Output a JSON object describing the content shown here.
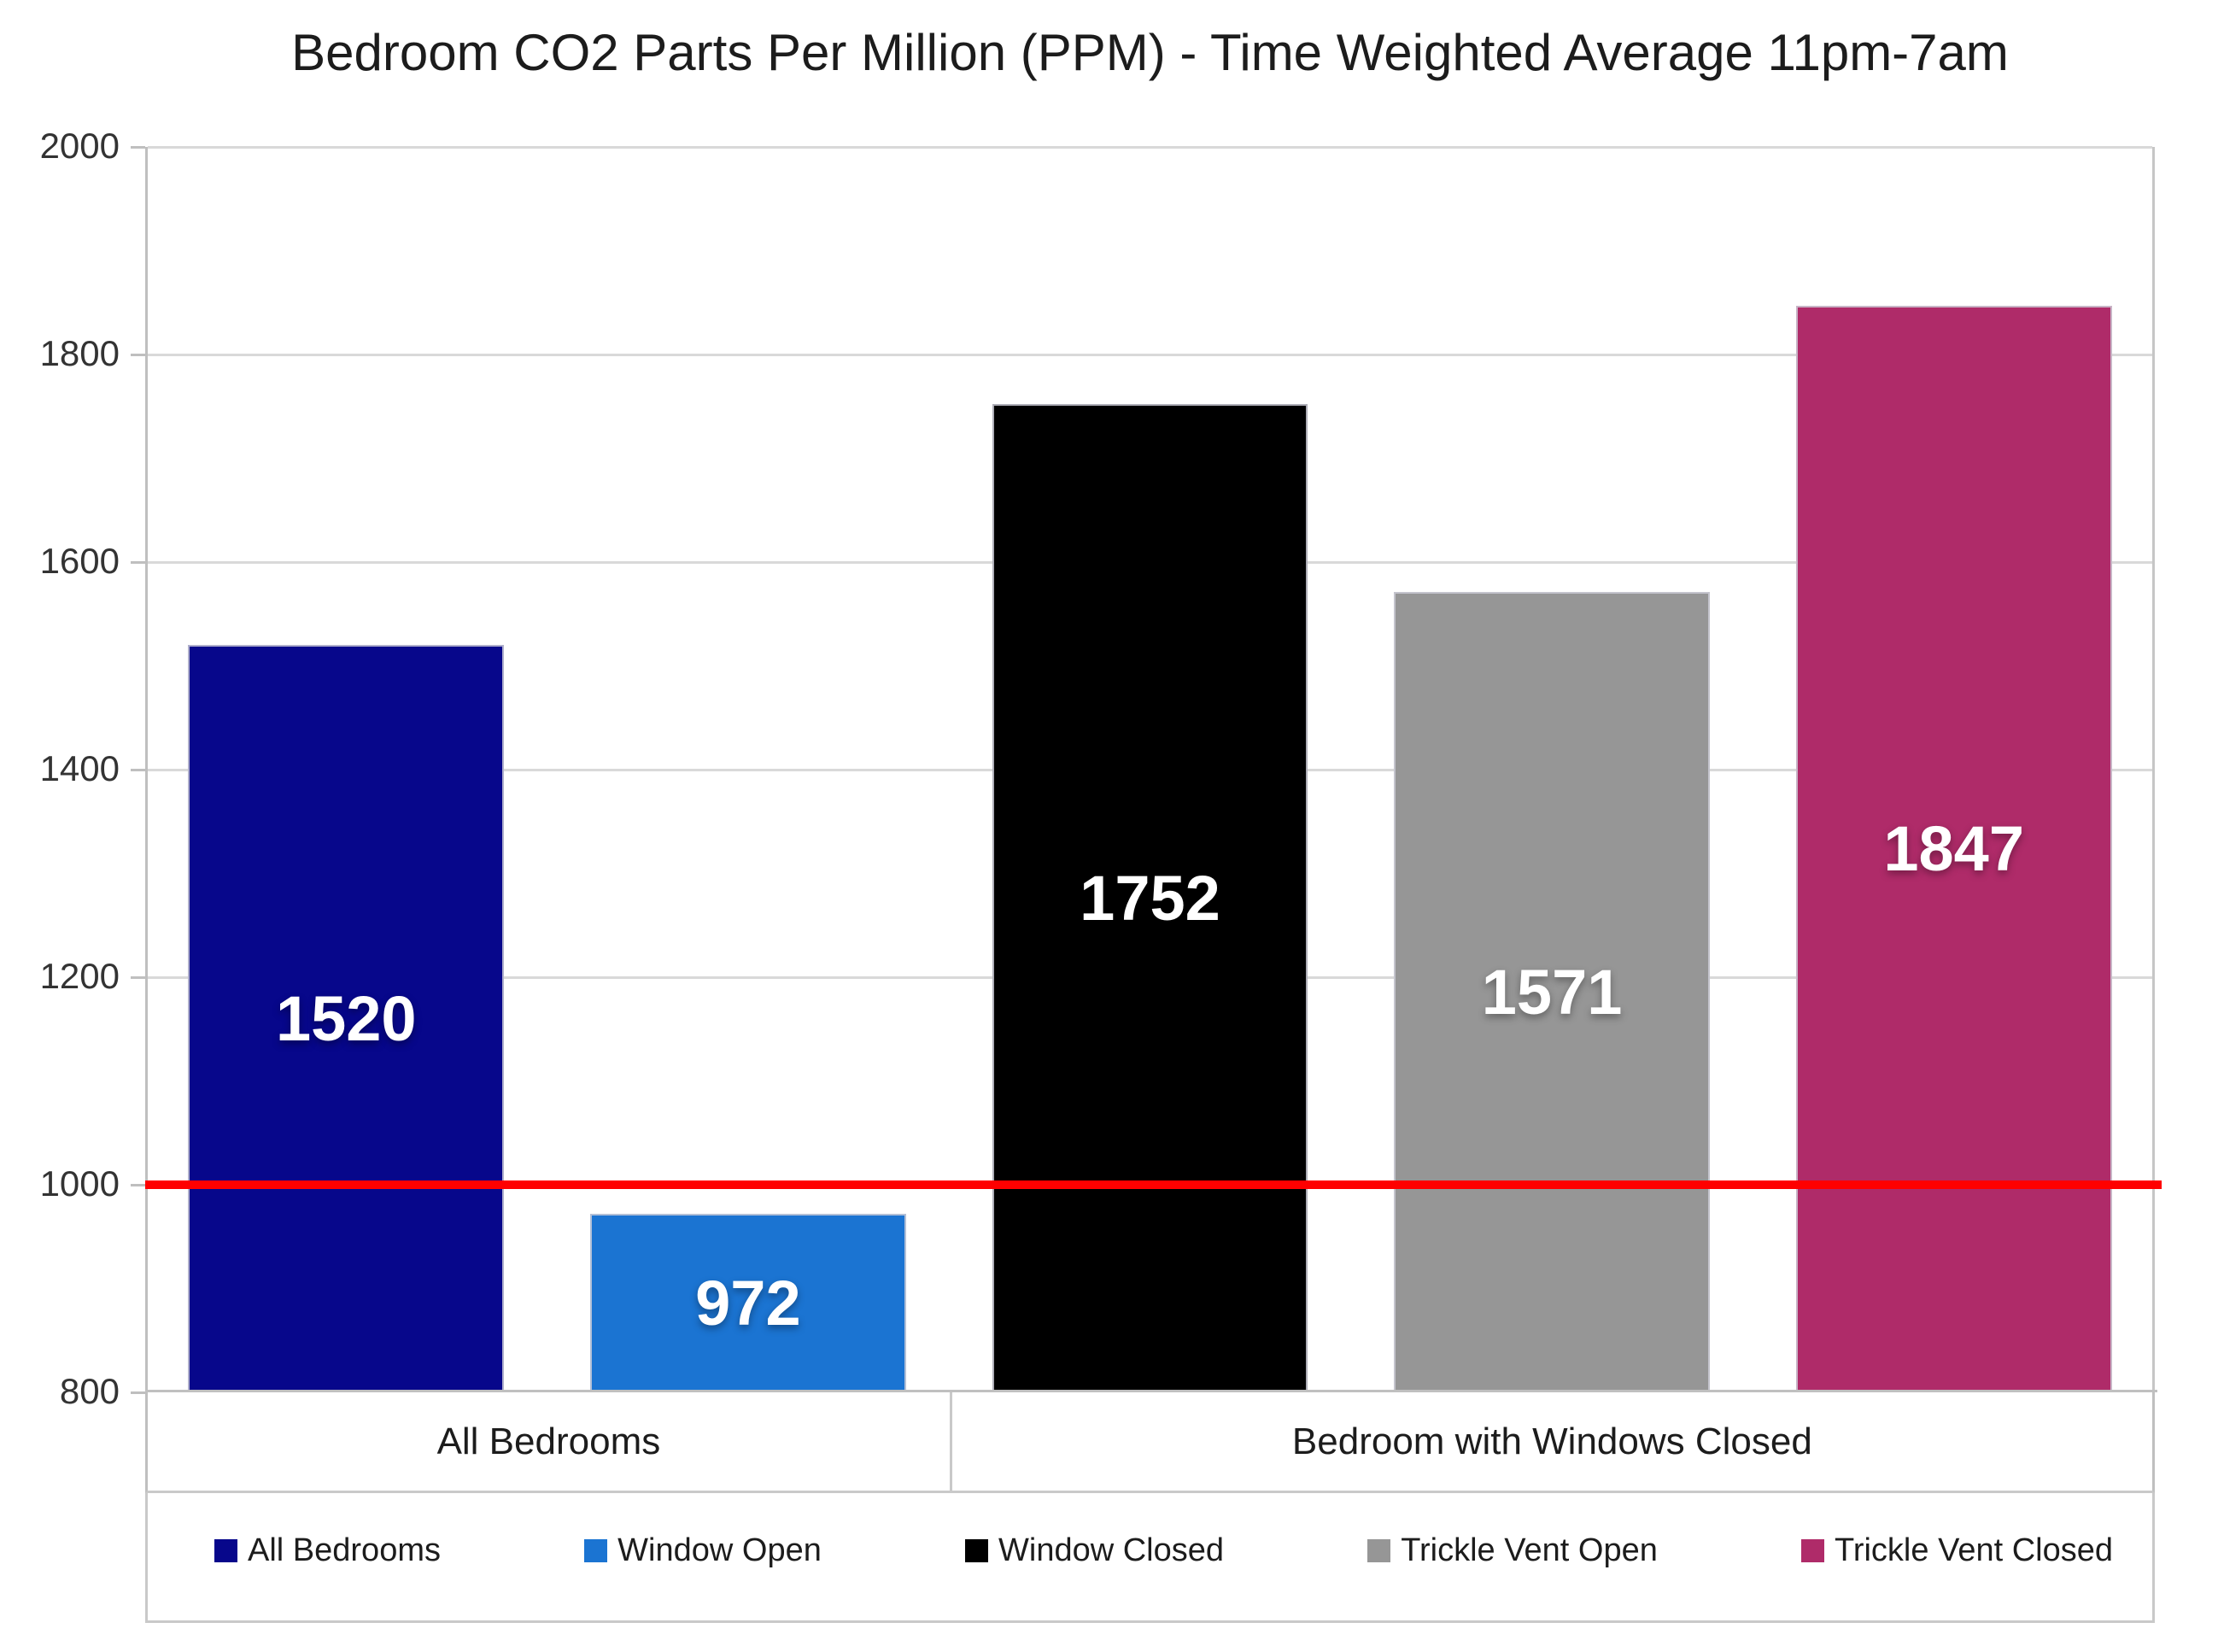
{
  "chart_data": {
    "type": "bar",
    "title": "Bedroom CO2 Parts Per Million (PPM) - Time Weighted Average 11pm-7am",
    "xlabel": "",
    "ylabel": "",
    "ylim": [
      800,
      2000
    ],
    "yticks": [
      2000,
      1800,
      1600,
      1400,
      1200,
      1000,
      800
    ],
    "grid": true,
    "legend_position": "bottom",
    "groups": [
      {
        "label": "All Bedrooms",
        "bars": [
          {
            "name": "All Bedrooms",
            "value": 1520,
            "color": "#07078B"
          },
          {
            "name": "Window Open",
            "value": 972,
            "color": "#1B74D2"
          }
        ]
      },
      {
        "label": "Bedroom with Windows Closed",
        "bars": [
          {
            "name": "Window Closed",
            "value": 1752,
            "color": "#000000"
          },
          {
            "name": "Trickle Vent Open",
            "value": 1571,
            "color": "#969696"
          },
          {
            "name": "Trickle Vent Closed",
            "value": 1847,
            "color": "#AF2B69"
          }
        ]
      }
    ],
    "reference_line": {
      "value": 1000,
      "color": "#FF0000"
    },
    "legend": [
      {
        "label": "All Bedrooms",
        "color": "#07078B"
      },
      {
        "label": "Window Open",
        "color": "#1B74D2"
      },
      {
        "label": "Window Closed",
        "color": "#000000"
      },
      {
        "label": "Trickle Vent Open",
        "color": "#969696"
      },
      {
        "label": "Trickle Vent Closed",
        "color": "#AF2B69"
      }
    ],
    "colors": {
      "gridline": "#D9D9D9",
      "axis": "#BFBFBF",
      "text": "#1C1C1C",
      "value_label_text": "#FFFFFF"
    }
  }
}
